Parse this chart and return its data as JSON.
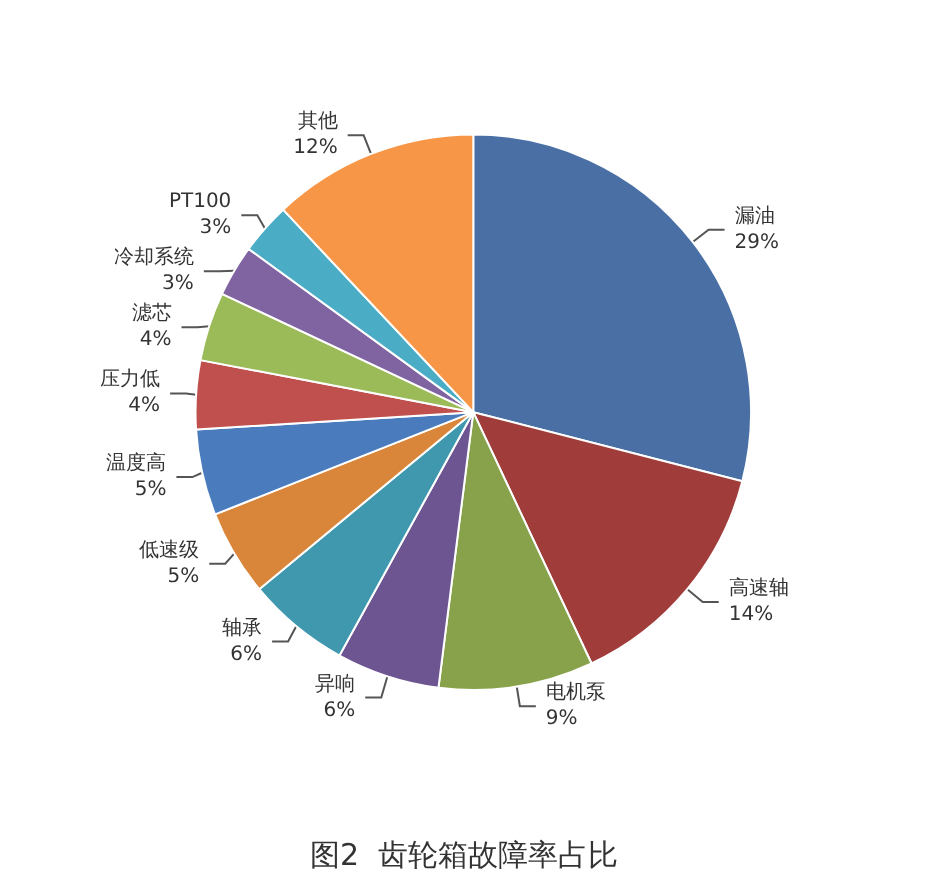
{
  "chart_data": {
    "type": "pie",
    "title": "图2  齿轮箱故障率占比",
    "categories": [
      "漏油",
      "高速轴",
      "电机泵",
      "异响",
      "轴承",
      "低速级",
      "温度高",
      "压力低",
      "滤芯",
      "冷却系统",
      "PT100",
      "其他"
    ],
    "values": [
      29,
      14,
      9,
      6,
      6,
      5,
      5,
      4,
      4,
      3,
      3,
      12
    ],
    "value_labels": [
      "29%",
      "14%",
      "9%",
      "6%",
      "6%",
      "5%",
      "5%",
      "4%",
      "4%",
      "3%",
      "3%",
      "12%"
    ],
    "colors": [
      "#4a6fa5",
      "#a03d3b",
      "#87a24a",
      "#6c5591",
      "#3f98ae",
      "#d9863a",
      "#4a7cbd",
      "#c0504d",
      "#9bbb59",
      "#8064a2",
      "#4bacc6",
      "#f79646"
    ],
    "legend": false
  }
}
